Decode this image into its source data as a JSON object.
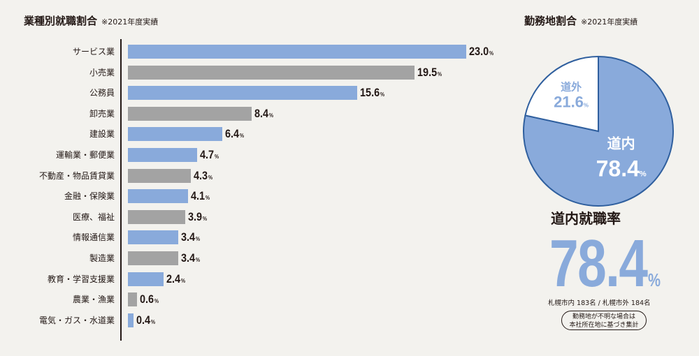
{
  "colors": {
    "accent_blue": "#89aadb",
    "gray": "#a3a3a3",
    "text": "#231815",
    "background": "#f3f2ee"
  },
  "chart_data": [
    {
      "type": "bar",
      "orientation": "horizontal",
      "title": "業種別就職割合",
      "subtitle": "※2021年度実績",
      "categories": [
        "サービス業",
        "小売業",
        "公務員",
        "卸売業",
        "建設業",
        "運輸業・郵便業",
        "不動産・物品賃貸業",
        "金融・保険業",
        "医療、福祉",
        "情報通信業",
        "製造業",
        "教育・学習支援業",
        "農業・漁業",
        "電気・ガス・水道業"
      ],
      "values": [
        23.0,
        19.5,
        15.6,
        8.4,
        6.4,
        4.7,
        4.3,
        4.1,
        3.9,
        3.4,
        3.4,
        2.4,
        0.6,
        0.4
      ],
      "value_labels": [
        "23.0",
        "19.5",
        "15.6",
        "8.4",
        "6.4",
        "4.7",
        "4.3",
        "4.1",
        "3.9",
        "3.4",
        "3.4",
        "2.4",
        "0.6",
        "0.4"
      ],
      "unit": "%",
      "bar_colors": [
        "#89aadb",
        "#a3a3a3",
        "#89aadb",
        "#a3a3a3",
        "#89aadb",
        "#89aadb",
        "#a3a3a3",
        "#89aadb",
        "#a3a3a3",
        "#89aadb",
        "#a3a3a3",
        "#89aadb",
        "#a3a3a3",
        "#89aadb"
      ],
      "xlim": [
        0,
        23.0
      ],
      "grid": false
    },
    {
      "type": "pie",
      "title": "勤務地割合",
      "subtitle": "※2021年度実績",
      "slices": [
        {
          "label": "道内",
          "value": 78.4,
          "value_label": "78.4",
          "color": "#89aadb"
        },
        {
          "label": "道外",
          "value": 21.6,
          "value_label": "21.6",
          "color": "#ffffff"
        }
      ],
      "unit": "%"
    }
  ],
  "summary": {
    "label": "道内就職率",
    "value": "78.4",
    "unit": "%",
    "breakdown": "札幌市内 183名 / 札幌市外 184名",
    "note_line1": "勤務地が不明な場合は",
    "note_line2": "本社所在地に基づき集計"
  }
}
